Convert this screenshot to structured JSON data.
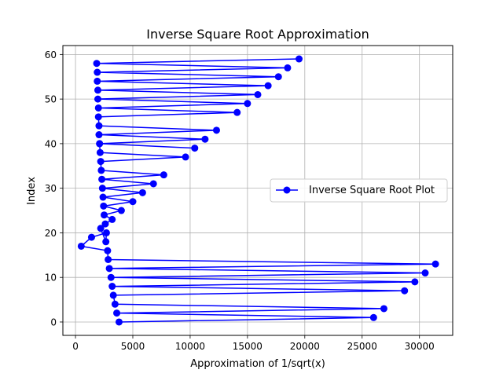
{
  "chart_data": {
    "type": "line",
    "title": "Inverse Square Root Approximation",
    "xlabel": "Approximation of 1/sqrt(x)",
    "ylabel": "Index",
    "xlim": [
      -1100,
      32900
    ],
    "ylim": [
      -3,
      62
    ],
    "xticks": [
      0,
      5000,
      10000,
      15000,
      20000,
      25000,
      30000
    ],
    "yticks": [
      0,
      10,
      20,
      30,
      40,
      50,
      60
    ],
    "grid": true,
    "legend_position": "center-right",
    "series": [
      {
        "name": "Inverse Square Root Plot",
        "color": "#0000ff",
        "marker": "circle",
        "x": [
          3800,
          26000,
          3600,
          26900,
          3450,
          3300,
          28700,
          3200,
          29600,
          3100,
          30500,
          2950,
          31400,
          2850,
          2800,
          500,
          1400,
          2700,
          2650,
          2200,
          2600,
          3200,
          2500,
          4000,
          2450,
          5000,
          2400,
          5850,
          2350,
          6800,
          2300,
          7700,
          2250,
          2200,
          9600,
          2150,
          2100,
          10400,
          2100,
          11300,
          2050,
          12300,
          2050,
          2000,
          14100,
          2000,
          15000,
          1950,
          15900,
          1950,
          16800,
          1900,
          17700,
          1900,
          18500,
          1850,
          19500
        ],
        "y": [
          0,
          1,
          2,
          3,
          4,
          6,
          7,
          8,
          9,
          10,
          11,
          12,
          13,
          14,
          16,
          17,
          19,
          20,
          18,
          21,
          22,
          23,
          24,
          25,
          26,
          27,
          28,
          29,
          30,
          31,
          32,
          33,
          34,
          36,
          37,
          38,
          40,
          39,
          40,
          41,
          42,
          43,
          44,
          46,
          47,
          48,
          49,
          50,
          51,
          52,
          53,
          54,
          55,
          56,
          57,
          58,
          59
        ]
      }
    ]
  }
}
